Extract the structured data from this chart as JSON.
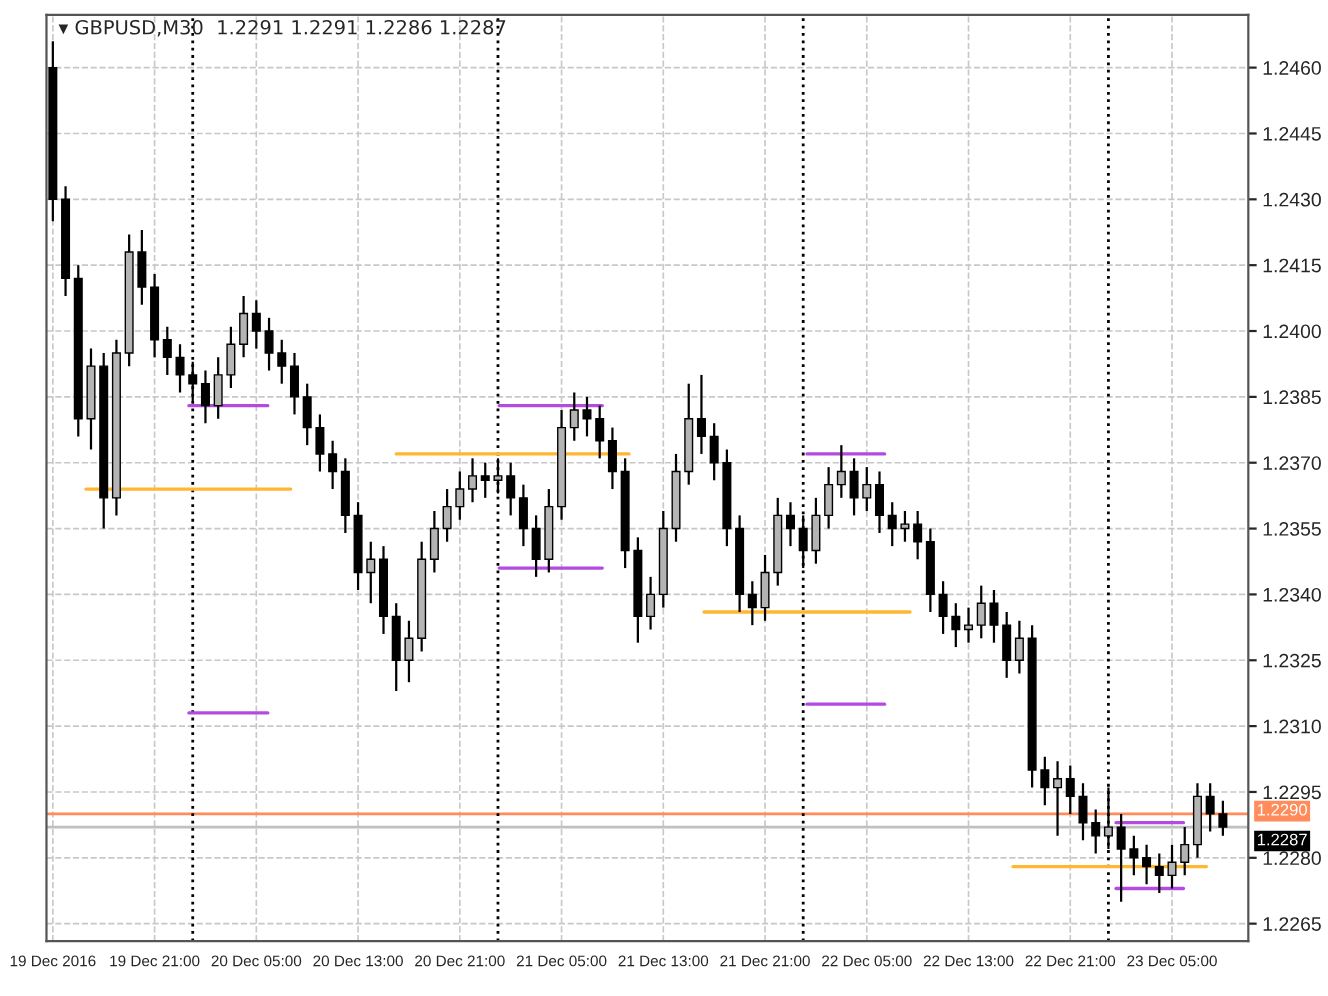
{
  "chart_data": {
    "type": "candlestick",
    "title": "▾ GBPUSD,M30  1.2291 1.2291 1.2286 1.2287",
    "x": [
      "2016-12-19T13:00",
      "2016-12-19T14:00",
      "2016-12-19T15:00",
      "2016-12-19T16:00",
      "2016-12-19T17:00",
      "2016-12-19T18:00",
      "2016-12-19T19:00",
      "2016-12-19T20:00",
      "2016-12-19T21:00",
      "2016-12-19T22:00",
      "2016-12-19T23:00",
      "2016-12-20T00:00",
      "2016-12-20T01:00",
      "2016-12-20T02:00",
      "2016-12-20T03:00",
      "2016-12-20T04:00",
      "2016-12-20T05:00",
      "2016-12-20T06:00",
      "2016-12-20T07:00",
      "2016-12-20T08:00",
      "2016-12-20T09:00",
      "2016-12-20T10:00",
      "2016-12-20T11:00",
      "2016-12-20T12:00",
      "2016-12-20T13:00",
      "2016-12-20T14:00",
      "2016-12-20T15:00",
      "2016-12-20T16:00",
      "2016-12-20T17:00",
      "2016-12-20T18:00",
      "2016-12-20T19:00",
      "2016-12-20T20:00",
      "2016-12-20T21:00",
      "2016-12-20T22:00",
      "2016-12-20T23:00",
      "2016-12-21T00:00",
      "2016-12-21T01:00",
      "2016-12-21T02:00",
      "2016-12-21T03:00",
      "2016-12-21T04:00",
      "2016-12-21T05:00",
      "2016-12-21T06:00",
      "2016-12-21T07:00",
      "2016-12-21T08:00",
      "2016-12-21T09:00",
      "2016-12-21T10:00",
      "2016-12-21T11:00",
      "2016-12-21T12:00",
      "2016-12-21T13:00",
      "2016-12-21T14:00",
      "2016-12-21T15:00",
      "2016-12-21T16:00",
      "2016-12-21T17:00",
      "2016-12-21T18:00",
      "2016-12-21T19:00",
      "2016-12-21T20:00",
      "2016-12-21T21:00",
      "2016-12-21T22:00",
      "2016-12-21T23:00",
      "2016-12-22T00:00",
      "2016-12-22T01:00",
      "2016-12-22T02:00",
      "2016-12-22T03:00",
      "2016-12-22T04:00",
      "2016-12-22T05:00",
      "2016-12-22T06:00",
      "2016-12-22T07:00",
      "2016-12-22T08:00",
      "2016-12-22T09:00",
      "2016-12-22T10:00",
      "2016-12-22T11:00",
      "2016-12-22T12:00",
      "2016-12-22T13:00",
      "2016-12-22T14:00",
      "2016-12-22T15:00",
      "2016-12-22T16:00",
      "2016-12-22T17:00",
      "2016-12-22T18:00",
      "2016-12-22T19:00",
      "2016-12-22T20:00",
      "2016-12-22T21:00",
      "2016-12-22T22:00",
      "2016-12-22T23:00",
      "2016-12-23T00:00",
      "2016-12-23T01:00",
      "2016-12-23T02:00",
      "2016-12-23T03:00",
      "2016-12-23T04:00",
      "2016-12-23T05:00",
      "2016-12-23T06:00",
      "2016-12-23T07:00",
      "2016-12-23T08:00",
      "2016-12-23T09:00"
    ],
    "ohlc": [
      [
        1.246,
        1.2466,
        1.2425,
        1.243
      ],
      [
        1.243,
        1.2433,
        1.2408,
        1.2412
      ],
      [
        1.2412,
        1.2415,
        1.2376,
        1.238
      ],
      [
        1.238,
        1.2396,
        1.2373,
        1.2392
      ],
      [
        1.2392,
        1.2395,
        1.2355,
        1.2362
      ],
      [
        1.2362,
        1.2398,
        1.2358,
        1.2395
      ],
      [
        1.2395,
        1.2422,
        1.2392,
        1.2418
      ],
      [
        1.2418,
        1.2423,
        1.2406,
        1.241
      ],
      [
        1.241,
        1.2413,
        1.2394,
        1.2398
      ],
      [
        1.2398,
        1.2401,
        1.239,
        1.2394
      ],
      [
        1.2394,
        1.2397,
        1.2386,
        1.239
      ],
      [
        1.239,
        1.2393,
        1.2384,
        1.2388
      ],
      [
        1.2388,
        1.2391,
        1.2379,
        1.2383
      ],
      [
        1.2383,
        1.2394,
        1.238,
        1.239
      ],
      [
        1.239,
        1.2401,
        1.2387,
        1.2397
      ],
      [
        1.2397,
        1.2408,
        1.2394,
        1.2404
      ],
      [
        1.2404,
        1.2407,
        1.2396,
        1.24
      ],
      [
        1.24,
        1.2403,
        1.2391,
        1.2395
      ],
      [
        1.2395,
        1.2398,
        1.2388,
        1.2392
      ],
      [
        1.2392,
        1.2395,
        1.2381,
        1.2385
      ],
      [
        1.2385,
        1.2388,
        1.2374,
        1.2378
      ],
      [
        1.2378,
        1.2381,
        1.2368,
        1.2372
      ],
      [
        1.2372,
        1.2375,
        1.2364,
        1.2368
      ],
      [
        1.2368,
        1.2371,
        1.2354,
        1.2358
      ],
      [
        1.2358,
        1.2361,
        1.2341,
        1.2345
      ],
      [
        1.2345,
        1.2352,
        1.2338,
        1.2348
      ],
      [
        1.2348,
        1.2351,
        1.2331,
        1.2335
      ],
      [
        1.2335,
        1.2338,
        1.2318,
        1.2325
      ],
      [
        1.2325,
        1.2334,
        1.232,
        1.233
      ],
      [
        1.233,
        1.2352,
        1.2327,
        1.2348
      ],
      [
        1.2348,
        1.2359,
        1.2345,
        1.2355
      ],
      [
        1.2355,
        1.2364,
        1.2352,
        1.236
      ],
      [
        1.236,
        1.2368,
        1.2357,
        1.2364
      ],
      [
        1.2364,
        1.2371,
        1.2361,
        1.2367
      ],
      [
        1.2367,
        1.237,
        1.2362,
        1.2366
      ],
      [
        1.2366,
        1.2371,
        1.2363,
        1.2367
      ],
      [
        1.2367,
        1.237,
        1.2358,
        1.2362
      ],
      [
        1.2362,
        1.2365,
        1.2351,
        1.2355
      ],
      [
        1.2355,
        1.2358,
        1.2344,
        1.2348
      ],
      [
        1.2348,
        1.2364,
        1.2345,
        1.236
      ],
      [
        1.236,
        1.2382,
        1.2357,
        1.2378
      ],
      [
        1.2378,
        1.2386,
        1.2375,
        1.2382
      ],
      [
        1.2382,
        1.2385,
        1.2376,
        1.238
      ],
      [
        1.238,
        1.2383,
        1.2371,
        1.2375
      ],
      [
        1.2375,
        1.2378,
        1.2364,
        1.2368
      ],
      [
        1.2368,
        1.2371,
        1.2346,
        1.235
      ],
      [
        1.235,
        1.2353,
        1.2329,
        1.2335
      ],
      [
        1.2335,
        1.2344,
        1.2332,
        1.234
      ],
      [
        1.234,
        1.2359,
        1.2337,
        1.2355
      ],
      [
        1.2355,
        1.2372,
        1.2352,
        1.2368
      ],
      [
        1.2368,
        1.2388,
        1.2365,
        1.238
      ],
      [
        1.238,
        1.239,
        1.2372,
        1.2376
      ],
      [
        1.2376,
        1.2379,
        1.2366,
        1.237
      ],
      [
        1.237,
        1.2373,
        1.2351,
        1.2355
      ],
      [
        1.2355,
        1.2358,
        1.2336,
        1.234
      ],
      [
        1.234,
        1.2343,
        1.2333,
        1.2337
      ],
      [
        1.2337,
        1.2349,
        1.2334,
        1.2345
      ],
      [
        1.2345,
        1.2362,
        1.2342,
        1.2358
      ],
      [
        1.2358,
        1.2361,
        1.2351,
        1.2355
      ],
      [
        1.2355,
        1.2358,
        1.2346,
        1.235
      ],
      [
        1.235,
        1.2362,
        1.2347,
        1.2358
      ],
      [
        1.2358,
        1.2369,
        1.2355,
        1.2365
      ],
      [
        1.2365,
        1.2374,
        1.2362,
        1.2368
      ],
      [
        1.2368,
        1.2371,
        1.2358,
        1.2362
      ],
      [
        1.2362,
        1.2369,
        1.2359,
        1.2365
      ],
      [
        1.2365,
        1.2368,
        1.2354,
        1.2358
      ],
      [
        1.2358,
        1.2361,
        1.2351,
        1.2355
      ],
      [
        1.2355,
        1.2359,
        1.2352,
        1.2356
      ],
      [
        1.2356,
        1.2359,
        1.2348,
        1.2352
      ],
      [
        1.2352,
        1.2355,
        1.2336,
        1.234
      ],
      [
        1.234,
        1.2343,
        1.2331,
        1.2335
      ],
      [
        1.2335,
        1.2338,
        1.2328,
        1.2332
      ],
      [
        1.2332,
        1.2337,
        1.2329,
        1.2333
      ],
      [
        1.2333,
        1.2342,
        1.233,
        1.2338
      ],
      [
        1.2338,
        1.2341,
        1.2329,
        1.2333
      ],
      [
        1.2333,
        1.2336,
        1.2321,
        1.2325
      ],
      [
        1.2325,
        1.2334,
        1.2322,
        1.233
      ],
      [
        1.233,
        1.2333,
        1.2296,
        1.23
      ],
      [
        1.23,
        1.2303,
        1.2292,
        1.2296
      ],
      [
        1.2296,
        1.2302,
        1.2285,
        1.2298
      ],
      [
        1.2298,
        1.2301,
        1.229,
        1.2294
      ],
      [
        1.2294,
        1.2297,
        1.2284,
        1.2288
      ],
      [
        1.2288,
        1.2291,
        1.2281,
        1.2285
      ],
      [
        1.2285,
        1.2296,
        1.2282,
        1.2287
      ],
      [
        1.2287,
        1.229,
        1.227,
        1.2282
      ],
      [
        1.2282,
        1.2285,
        1.2276,
        1.228
      ],
      [
        1.228,
        1.2283,
        1.2274,
        1.2278
      ],
      [
        1.2278,
        1.2281,
        1.2272,
        1.2276
      ],
      [
        1.2276,
        1.2283,
        1.2273,
        1.2279
      ],
      [
        1.2279,
        1.2287,
        1.2276,
        1.2283
      ],
      [
        1.2283,
        1.2297,
        1.228,
        1.2294
      ],
      [
        1.2294,
        1.2297,
        1.2286,
        1.229
      ],
      [
        1.229,
        1.2293,
        1.2285,
        1.2287
      ]
    ],
    "colors": [
      "#000000",
      "#000000",
      "#000000",
      "#b4b4b4",
      "#000000",
      "#b4b4b4",
      "#b4b4b4",
      "#000000",
      "#000000",
      "#000000",
      "#000000",
      "#000000",
      "#000000",
      "#b4b4b4",
      "#b4b4b4",
      "#b4b4b4",
      "#000000",
      "#000000",
      "#000000",
      "#000000",
      "#000000",
      "#000000",
      "#000000",
      "#000000",
      "#000000",
      "#b4b4b4",
      "#000000",
      "#000000",
      "#b4b4b4",
      "#b4b4b4",
      "#b4b4b4",
      "#b4b4b4",
      "#b4b4b4",
      "#b4b4b4",
      "#000000",
      "#b4b4b4",
      "#000000",
      "#000000",
      "#000000",
      "#b4b4b4",
      "#b4b4b4",
      "#b4b4b4",
      "#000000",
      "#000000",
      "#000000",
      "#000000",
      "#000000",
      "#b4b4b4",
      "#b4b4b4",
      "#b4b4b4",
      "#b4b4b4",
      "#000000",
      "#000000",
      "#000000",
      "#000000",
      "#000000",
      "#b4b4b4",
      "#b4b4b4",
      "#000000",
      "#000000",
      "#b4b4b4",
      "#b4b4b4",
      "#b4b4b4",
      "#000000",
      "#b4b4b4",
      "#000000",
      "#000000",
      "#b4b4b4",
      "#000000",
      "#000000",
      "#000000",
      "#000000",
      "#b4b4b4",
      "#b4b4b4",
      "#000000",
      "#000000",
      "#b4b4b4",
      "#000000",
      "#000000",
      "#b4b4b4",
      "#000000",
      "#000000",
      "#000000",
      "#b4b4b4",
      "#000000",
      "#000000",
      "#000000",
      "#000000",
      "#b4b4b4",
      "#b4b4b4",
      "#b4b4b4",
      "#000000",
      "#000000"
    ],
    "series": [
      {
        "type": "line",
        "color": "#ffb732",
        "x": [
          "2016-12-19T15:36",
          "2016-12-20T07:42"
        ],
        "values": [
          1.2364,
          1.2364
        ]
      },
      {
        "type": "line",
        "color": "#ffb732",
        "x": [
          "2016-12-20T16:00",
          "2016-12-21T10:18"
        ],
        "values": [
          1.2372,
          1.2372
        ]
      },
      {
        "type": "line",
        "color": "#ffb732",
        "x": [
          "2016-12-21T16:12",
          "2016-12-22T08:24"
        ],
        "values": [
          1.2336,
          1.2336
        ]
      },
      {
        "type": "line",
        "color": "#ffb732",
        "x": [
          "2016-12-22T16:30",
          "2016-12-23T07:42"
        ],
        "values": [
          1.2278,
          1.2278
        ]
      },
      {
        "type": "line",
        "color": "#b44be1",
        "x": [
          "2016-12-19T23:42",
          "2016-12-20T05:54"
        ],
        "values": [
          1.2383,
          1.2383
        ]
      },
      {
        "type": "line",
        "color": "#b44be1",
        "x": [
          "2016-12-19T23:42",
          "2016-12-20T05:54"
        ],
        "values": [
          1.2313,
          1.2313
        ]
      },
      {
        "type": "line",
        "color": "#b44be1",
        "x": [
          "2016-12-21T00:06",
          "2016-12-21T08:12"
        ],
        "values": [
          1.2383,
          1.2383
        ]
      },
      {
        "type": "line",
        "color": "#b44be1",
        "x": [
          "2016-12-21T00:06",
          "2016-12-21T08:12"
        ],
        "values": [
          1.2346,
          1.2346
        ]
      },
      {
        "type": "line",
        "color": "#b44be1",
        "x": [
          "2016-12-22T00:18",
          "2016-12-22T06:24"
        ],
        "values": [
          1.2372,
          1.2372
        ]
      },
      {
        "type": "line",
        "color": "#b44be1",
        "x": [
          "2016-12-22T00:18",
          "2016-12-22T06:24"
        ],
        "values": [
          1.2315,
          1.2315
        ]
      },
      {
        "type": "line",
        "color": "#b44be1",
        "x": [
          "2016-12-23T00:36",
          "2016-12-23T05:54"
        ],
        "values": [
          1.2288,
          1.2288
        ]
      },
      {
        "type": "line",
        "color": "#b44be1",
        "x": [
          "2016-12-23T00:36",
          "2016-12-23T05:54"
        ],
        "values": [
          1.2273,
          1.2273
        ]
      }
    ],
    "xlim": [
      "2016-12-19T12:30",
      "2016-12-23T11:00"
    ],
    "xticks": [
      {
        "value": "2016-12-19T13:00",
        "label": "19 Dec 2016"
      },
      {
        "value": "2016-12-19T21:00",
        "label": "19 Dec 21:00"
      },
      {
        "value": "2016-12-20T05:00",
        "label": "20 Dec 05:00"
      },
      {
        "value": "2016-12-20T13:00",
        "label": "20 Dec 13:00"
      },
      {
        "value": "2016-12-20T21:00",
        "label": "20 Dec 21:00"
      },
      {
        "value": "2016-12-21T05:00",
        "label": "21 Dec 05:00"
      },
      {
        "value": "2016-12-21T13:00",
        "label": "21 Dec 13:00"
      },
      {
        "value": "2016-12-21T21:00",
        "label": "21 Dec 21:00"
      },
      {
        "value": "2016-12-22T05:00",
        "label": "22 Dec 05:00"
      },
      {
        "value": "2016-12-22T13:00",
        "label": "22 Dec 13:00"
      },
      {
        "value": "2016-12-22T21:00",
        "label": "22 Dec 21:00"
      },
      {
        "value": "2016-12-23T05:00",
        "label": "23 Dec 05:00"
      }
    ],
    "ylim": [
      1.2261,
      1.2472
    ],
    "yticks": [
      {
        "value": 1.2265,
        "label": "1.2265"
      },
      {
        "value": 1.228,
        "label": "1.2280"
      },
      {
        "value": 1.2295,
        "label": "1.2295"
      },
      {
        "value": 1.231,
        "label": "1.2310"
      },
      {
        "value": 1.2325,
        "label": "1.2325"
      },
      {
        "value": 1.234,
        "label": "1.2340"
      },
      {
        "value": 1.2355,
        "label": "1.2355"
      },
      {
        "value": 1.237,
        "label": "1.2370"
      },
      {
        "value": 1.2385,
        "label": "1.2385"
      },
      {
        "value": 1.24,
        "label": "1.2400"
      },
      {
        "value": 1.2415,
        "label": "1.2415"
      },
      {
        "value": 1.243,
        "label": "1.2430"
      },
      {
        "value": 1.2445,
        "label": "1.2445"
      },
      {
        "value": 1.246,
        "label": "1.2460"
      }
    ],
    "ref_lines": [
      {
        "axis": "y",
        "value": 1.229,
        "label": "1.2290",
        "color": "#ff8c5a",
        "line_style": "solid"
      },
      {
        "axis": "y",
        "value": 1.2287,
        "label": "1.2287",
        "color": "#c0c0c0",
        "line_style": "solid"
      },
      {
        "axis": "x",
        "value": "2016-12-20T00:00",
        "color": "#000000",
        "line_style": "dotted"
      },
      {
        "axis": "x",
        "value": "2016-12-21T00:00",
        "color": "#000000",
        "line_style": "dotted"
      },
      {
        "axis": "x",
        "value": "2016-12-22T00:00",
        "color": "#000000",
        "line_style": "dotted"
      },
      {
        "axis": "x",
        "value": "2016-12-23T00:00",
        "color": "#000000",
        "line_style": "dotted"
      }
    ],
    "grid": true
  }
}
